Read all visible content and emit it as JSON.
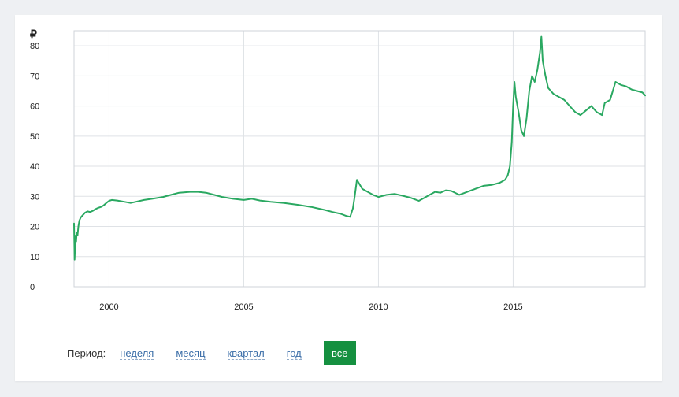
{
  "chart_data": {
    "type": "line",
    "currency_symbol": "₽",
    "ylim": [
      0,
      85
    ],
    "yticks": [
      0,
      10,
      20,
      30,
      40,
      50,
      60,
      70,
      80
    ],
    "xlim": [
      1998.7,
      2019.9
    ],
    "xticks": [
      2000,
      2005,
      2010,
      2015
    ],
    "grid": true,
    "line_color": "#2aa861",
    "series": [
      {
        "x": [
          1998.7,
          1998.72,
          1998.74,
          1998.76,
          1998.78,
          1998.8,
          1998.83,
          1998.86,
          1998.9,
          1998.95,
          1999.0,
          1999.1,
          1999.2,
          1999.3,
          1999.4,
          1999.5,
          1999.6,
          1999.7,
          1999.8,
          1999.9,
          2000.0,
          2000.1,
          2000.3,
          2000.5,
          2000.8,
          2001.0,
          2001.3,
          2001.6,
          2002.0,
          2002.3,
          2002.6,
          2003.0,
          2003.3,
          2003.6,
          2003.9,
          2004.2,
          2004.6,
          2005.0,
          2005.3,
          2005.6,
          2006.0,
          2006.5,
          2007.0,
          2007.5,
          2008.0,
          2008.3,
          2008.6,
          2008.8,
          2008.95,
          2009.05,
          2009.12,
          2009.2,
          2009.3,
          2009.4,
          2009.6,
          2009.8,
          2010.0,
          2010.3,
          2010.6,
          2010.9,
          2011.2,
          2011.5,
          2011.7,
          2011.9,
          2012.1,
          2012.3,
          2012.5,
          2012.7,
          2013.0,
          2013.3,
          2013.6,
          2013.9,
          2014.2,
          2014.5,
          2014.7,
          2014.8,
          2014.88,
          2014.95,
          2015.0,
          2015.05,
          2015.1,
          2015.2,
          2015.3,
          2015.4,
          2015.5,
          2015.6,
          2015.7,
          2015.8,
          2015.9,
          2016.0,
          2016.05,
          2016.1,
          2016.2,
          2016.3,
          2016.5,
          2016.7,
          2016.9,
          2017.1,
          2017.3,
          2017.5,
          2017.7,
          2017.9,
          2018.1,
          2018.3,
          2018.4,
          2018.6,
          2018.8,
          2019.0,
          2019.2,
          2019.4,
          2019.6,
          2019.8,
          2019.9
        ],
        "y": [
          21,
          9,
          14,
          17,
          15,
          18,
          17,
          20,
          22,
          23,
          23.5,
          24.5,
          25,
          24.8,
          25.2,
          25.8,
          26.2,
          26.5,
          27,
          27.8,
          28.5,
          28.8,
          28.6,
          28.3,
          27.8,
          28.2,
          28.8,
          29.2,
          29.8,
          30.5,
          31.2,
          31.5,
          31.5,
          31.2,
          30.5,
          29.8,
          29.2,
          28.8,
          29.2,
          28.6,
          28.2,
          27.8,
          27.2,
          26.5,
          25.5,
          24.8,
          24.2,
          23.5,
          23.2,
          26,
          30,
          35.5,
          34,
          32.5,
          31.5,
          30.5,
          29.8,
          30.5,
          30.8,
          30.2,
          29.5,
          28.5,
          29.5,
          30.5,
          31.5,
          31.2,
          32,
          31.8,
          30.5,
          31.5,
          32.5,
          33.5,
          33.8,
          34.5,
          35.5,
          37,
          40,
          48,
          60,
          68,
          63,
          58,
          52,
          50,
          56,
          65,
          70,
          68,
          72,
          78,
          83,
          75,
          70,
          66,
          64,
          63,
          62,
          60,
          58,
          57,
          58.5,
          60,
          58,
          57,
          61,
          62,
          68,
          67,
          66.5,
          65.5,
          65,
          64.5,
          63.5
        ]
      }
    ]
  },
  "period": {
    "label": "Период:",
    "options": [
      "неделя",
      "месяц",
      "квартал",
      "год"
    ],
    "active": "все"
  }
}
